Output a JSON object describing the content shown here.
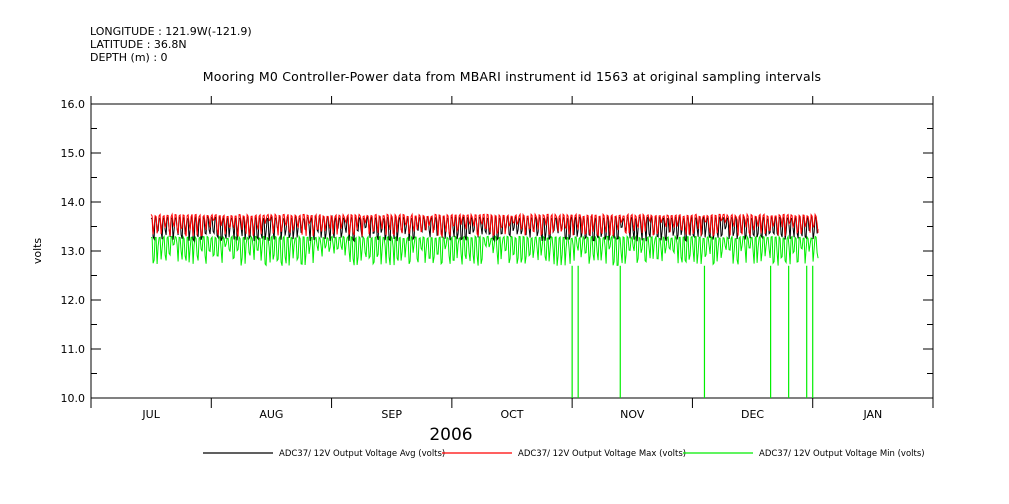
{
  "header": {
    "longitude": "LONGITUDE : 121.9W(-121.9)",
    "latitude": "LATITUDE : 36.8N",
    "depth": "DEPTH (m) : 0"
  },
  "chart_data": {
    "type": "line",
    "title": "Mooring M0 Controller-Power data from MBARI instrument id 1563 at original sampling intervals",
    "xlabel": "2006",
    "ylabel": "volts",
    "ylim": [
      10.0,
      16.0
    ],
    "y_ticks": [
      "10.0",
      "11.0",
      "12.0",
      "13.0",
      "14.0",
      "15.0",
      "16.0"
    ],
    "x_ticks": [
      "JUL",
      "AUG",
      "SEP",
      "OCT",
      "NOV",
      "DEC",
      "JAN"
    ],
    "x_range_months": [
      0,
      7
    ],
    "data_span_months": [
      0.5,
      6.05
    ],
    "grid": false,
    "legend_position": "bottom",
    "series": [
      {
        "name": "ADC37/ 12V Output Voltage Avg (volts)",
        "color": "#000000",
        "baseline": 13.5,
        "low": 13.2,
        "high": 13.7
      },
      {
        "name": "ADC37/ 12V Output Voltage Max (volts)",
        "color": "#ff0000",
        "baseline": 13.65,
        "low": 13.3,
        "high": 13.75
      },
      {
        "name": "ADC37/ 12V Output Voltage Min (volts)",
        "color": "#00ee00",
        "baseline": 13.15,
        "low": 12.7,
        "high": 13.3
      }
    ],
    "min_series_dropouts_months": [
      4.0,
      4.05,
      4.4,
      5.1,
      5.65,
      5.8,
      5.95,
      6.0
    ],
    "dropout_value": 10.0
  }
}
